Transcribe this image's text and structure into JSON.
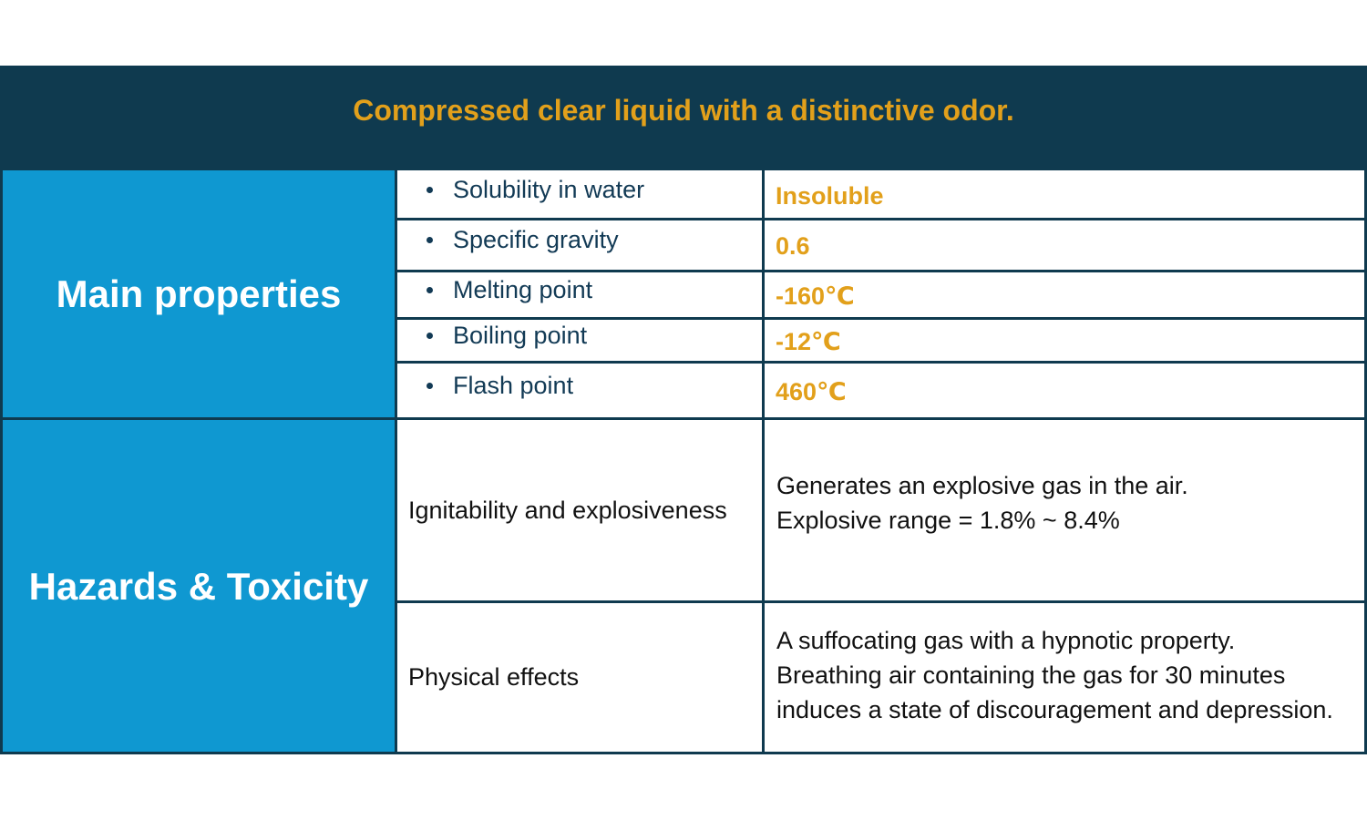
{
  "banner": {
    "text": "Compressed clear liquid with a distinctive odor."
  },
  "main_properties": {
    "heading": "Main properties",
    "rows": [
      {
        "name": "Solubility in water",
        "value": "Insoluble"
      },
      {
        "name": "Specific gravity",
        "value": "0.6"
      },
      {
        "name": "Melting point",
        "value": "-160℃"
      },
      {
        "name": "Boiling point",
        "value": "-12℃"
      },
      {
        "name": "Flash point",
        "value": "460℃"
      }
    ]
  },
  "hazards": {
    "heading": "Hazards & Toxicity",
    "rows": [
      {
        "name": "Ignitability and explosiveness",
        "lines": [
          "Generates an explosive gas in the air.",
          "Explosive range = 1.8% ~ 8.4%"
        ]
      },
      {
        "name": "Physical effects",
        "lines": [
          "A suffocating gas with a hypnotic property.",
          "Breathing air containing the gas for 30 minutes",
          "induces a state of discouragement and depression."
        ]
      }
    ]
  },
  "colors": {
    "banner_bg": "#0f3a4f",
    "accent": "#e2a01b",
    "section_bg": "#0f98d1",
    "border": "#0f3a4f"
  }
}
